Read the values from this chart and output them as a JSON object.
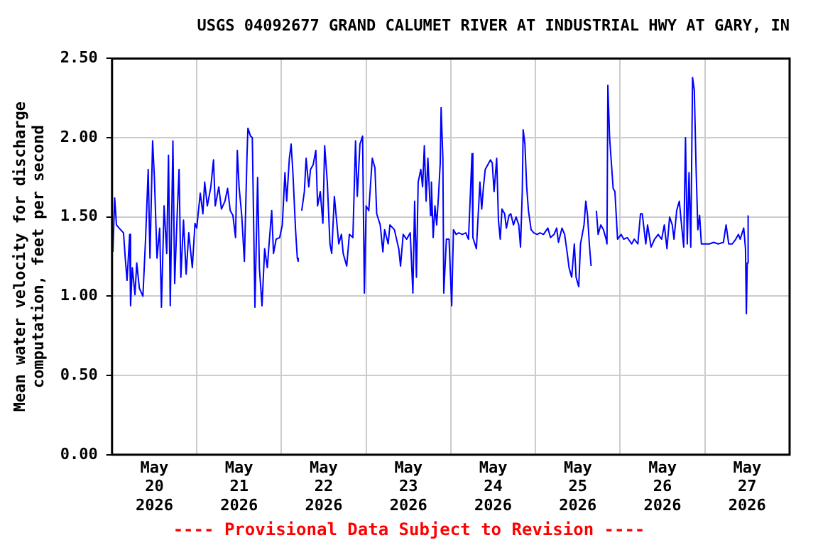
{
  "chart_data": {
    "type": "line",
    "title": "USGS 04092677 GRAND CALUMET RIVER AT INDUSTRIAL HWY AT GARY, IN",
    "ylabel": "Mean water velocity for discharge computation, feet per second",
    "annotations": [
      "---- Provisional Data Subject to Revision ----"
    ],
    "xlim": [
      "2026-05-20T00:00",
      "2026-05-28T00:00"
    ],
    "xticks": [
      {
        "value": "2026-05-20T00:00",
        "label": null
      },
      {
        "value": "2026-05-20T12:00",
        "label": "May 20 2026"
      },
      {
        "value": "2026-05-21T00:00",
        "label": null
      },
      {
        "value": "2026-05-21T12:00",
        "label": "May 21 2026"
      },
      {
        "value": "2026-05-22T00:00",
        "label": null
      },
      {
        "value": "2026-05-22T12:00",
        "label": "May 22 2026"
      },
      {
        "value": "2026-05-23T00:00",
        "label": null
      },
      {
        "value": "2026-05-23T12:00",
        "label": "May 23 2026"
      },
      {
        "value": "2026-05-24T00:00",
        "label": null
      },
      {
        "value": "2026-05-24T12:00",
        "label": "May 24 2026"
      },
      {
        "value": "2026-05-25T00:00",
        "label": null
      },
      {
        "value": "2026-05-25T12:00",
        "label": "May 25 2026"
      },
      {
        "value": "2026-05-26T00:00",
        "label": null
      },
      {
        "value": "2026-05-26T12:00",
        "label": "May 26 2026"
      },
      {
        "value": "2026-05-27T00:00",
        "label": null
      },
      {
        "value": "2026-05-27T12:00",
        "label": "May 27 2026"
      },
      {
        "value": "2026-05-28T00:00",
        "label": null
      }
    ],
    "ylim": [
      0,
      2.5
    ],
    "yticks": [
      {
        "value": 0,
        "label": "0.00"
      },
      {
        "value": 0.5,
        "label": "0.50"
      },
      {
        "value": 1,
        "label": "1.00"
      },
      {
        "value": 1.5,
        "label": "1.50"
      },
      {
        "value": 2,
        "label": "2.00"
      },
      {
        "value": 2.5,
        "label": "2.50"
      }
    ],
    "grid": true,
    "legend": false,
    "series": [
      {
        "color": "#0000ff",
        "x": [
          "2026-05-20T00:15",
          "2026-05-20T00:45",
          "2026-05-20T01:15",
          "2026-05-20T02:00",
          "2026-05-20T03:15",
          "2026-05-20T03:45",
          "2026-05-20T04:15",
          "2026-05-20T05:00",
          "2026-05-20T05:15",
          "2026-05-20T05:45",
          "2026-05-20T06:30",
          "2026-05-20T07:00",
          "2026-05-20T07:45",
          "2026-05-20T08:45",
          "2026-05-20T09:30",
          "2026-05-20T10:15",
          "2026-05-20T10:45",
          "2026-05-20T11:30",
          "2026-05-20T12:00",
          "2026-05-20T12:45",
          "2026-05-20T13:30",
          "2026-05-20T14:00",
          "2026-05-20T14:45",
          "2026-05-20T15:30",
          "2026-05-20T16:00",
          "2026-05-20T16:30",
          "2026-05-20T17:15",
          "2026-05-20T17:45",
          "2026-05-20T18:30",
          "2026-05-20T19:00",
          "2026-05-20T19:30",
          "2026-05-20T20:15",
          "2026-05-20T21:00",
          "2026-05-20T21:45",
          "2026-05-20T22:45",
          "2026-05-20T23:30",
          "2026-05-21T00:00",
          "2026-05-21T01:00",
          "2026-05-21T01:45",
          "2026-05-21T02:15",
          "2026-05-21T03:00",
          "2026-05-21T04:00",
          "2026-05-21T04:45",
          "2026-05-21T05:15",
          "2026-05-21T06:15",
          "2026-05-21T07:00",
          "2026-05-21T08:00",
          "2026-05-21T08:45",
          "2026-05-21T09:30",
          "2026-05-21T10:15",
          "2026-05-21T11:00",
          "2026-05-21T11:30",
          "2026-05-21T12:00",
          "2026-05-21T12:45",
          "2026-05-21T13:30",
          "2026-05-21T14:15",
          "2026-05-21T14:30",
          "2026-05-21T15:15",
          "2026-05-21T15:45",
          "2026-05-21T16:30",
          "2026-05-21T17:15",
          "2026-05-21T17:45",
          "2026-05-21T18:30",
          "2026-05-21T19:15",
          "2026-05-21T20:00",
          "2026-05-21T20:30",
          "2026-05-21T21:15",
          "2026-05-21T21:45",
          "2026-05-21T22:30",
          "2026-05-21T23:30",
          "2026-05-22T00:15",
          "2026-05-22T01:00",
          "2026-05-22T01:30",
          "2026-05-22T02:15",
          "2026-05-22T02:45",
          "2026-05-22T03:15",
          "2026-05-22T04:00",
          "2026-05-22T04:30",
          "2026-05-22T04:45",
          "2026-05-22T05:15",
          "2026-05-22T05:45",
          "2026-05-22T06:30",
          "2026-05-22T07:00",
          "2026-05-22T07:45",
          "2026-05-22T08:15",
          "2026-05-22T09:00",
          "2026-05-22T09:45",
          "2026-05-22T10:15",
          "2026-05-22T11:00",
          "2026-05-22T11:45",
          "2026-05-22T12:15",
          "2026-05-22T13:00",
          "2026-05-22T13:45",
          "2026-05-22T14:15",
          "2026-05-22T15:00",
          "2026-05-22T15:30",
          "2026-05-22T16:15",
          "2026-05-22T17:00",
          "2026-05-22T17:30",
          "2026-05-22T18:30",
          "2026-05-22T19:15",
          "2026-05-22T20:15",
          "2026-05-22T21:00",
          "2026-05-22T21:30",
          "2026-05-22T22:15",
          "2026-05-22T23:00",
          "2026-05-22T23:30",
          "2026-05-23T00:00",
          "2026-05-23T00:45",
          "2026-05-23T01:45",
          "2026-05-23T02:30",
          "2026-05-23T03:00",
          "2026-05-23T04:00",
          "2026-05-23T04:45",
          "2026-05-23T05:15",
          "2026-05-23T06:15",
          "2026-05-23T06:45",
          "2026-05-23T08:00",
          "2026-05-23T09:15",
          "2026-05-23T09:45",
          "2026-05-23T10:30",
          "2026-05-23T11:30",
          "2026-05-23T12:30",
          "2026-05-23T13:15",
          "2026-05-23T13:45",
          "2026-05-23T14:15",
          "2026-05-23T14:45",
          "2026-05-23T15:30",
          "2026-05-23T16:00",
          "2026-05-23T16:30",
          "2026-05-23T17:00",
          "2026-05-23T17:30",
          "2026-05-23T18:15",
          "2026-05-23T18:30",
          "2026-05-23T19:00",
          "2026-05-23T19:30",
          "2026-05-23T20:00",
          "2026-05-23T20:30",
          "2026-05-23T21:00",
          "2026-05-23T21:15",
          "2026-05-23T21:45",
          "2026-05-23T22:00",
          "2026-05-23T22:45",
          "2026-05-23T23:30",
          "2026-05-24T00:15",
          "2026-05-24T00:45",
          "2026-05-24T01:30",
          "2026-05-24T02:15",
          "2026-05-24T03:15",
          "2026-05-24T04:15",
          "2026-05-24T05:00",
          "2026-05-24T05:30",
          "2026-05-24T06:00",
          "2026-05-24T06:15",
          "2026-05-24T07:15",
          "2026-05-24T07:45",
          "2026-05-24T08:15",
          "2026-05-24T08:45",
          "2026-05-24T09:15",
          "2026-05-24T09:45",
          "2026-05-24T10:30",
          "2026-05-24T11:15",
          "2026-05-24T11:45",
          "2026-05-24T12:15",
          "2026-05-24T13:00",
          "2026-05-24T13:30",
          "2026-05-24T14:00",
          "2026-05-24T14:30",
          "2026-05-24T15:15",
          "2026-05-24T15:45",
          "2026-05-24T16:30",
          "2026-05-24T17:00",
          "2026-05-24T17:45",
          "2026-05-24T18:30",
          "2026-05-24T19:15",
          "2026-05-24T19:45",
          "2026-05-24T20:15",
          "2026-05-24T20:30",
          "2026-05-24T21:00",
          "2026-05-24T21:30",
          "2026-05-24T22:00",
          "2026-05-24T22:45",
          "2026-05-24T23:30",
          "2026-05-25T00:30",
          "2026-05-25T01:15",
          "2026-05-25T02:15",
          "2026-05-25T03:30",
          "2026-05-25T04:15",
          "2026-05-25T05:15",
          "2026-05-25T06:00",
          "2026-05-25T06:30",
          "2026-05-25T07:30",
          "2026-05-25T08:15",
          "2026-05-25T09:00",
          "2026-05-25T09:30",
          "2026-05-25T10:15",
          "2026-05-25T11:00",
          "2026-05-25T11:30",
          "2026-05-25T12:15",
          "2026-05-25T12:45",
          "2026-05-25T13:15",
          "2026-05-25T13:45",
          "2026-05-25T14:15",
          "2026-05-25T14:45",
          "2026-05-25T15:15",
          "2026-05-25T15:45",
          "2026-05-25T16:15",
          "2026-05-25T17:15",
          "2026-05-25T17:45",
          "2026-05-25T18:30",
          "2026-05-25T19:15",
          "2026-05-25T20:00",
          "2026-05-25T20:15",
          "2026-05-25T20:30",
          "2026-05-25T21:00",
          "2026-05-25T21:30",
          "2026-05-25T22:00",
          "2026-05-25T22:30",
          "2026-05-25T23:15",
          "2026-05-26T00:15",
          "2026-05-26T01:00",
          "2026-05-26T02:00",
          "2026-05-26T03:15",
          "2026-05-26T04:00",
          "2026-05-26T05:00",
          "2026-05-26T05:45",
          "2026-05-26T06:15",
          "2026-05-26T07:15",
          "2026-05-26T07:45",
          "2026-05-26T08:45",
          "2026-05-26T09:45",
          "2026-05-26T10:45",
          "2026-05-26T11:45",
          "2026-05-26T12:30",
          "2026-05-26T13:15",
          "2026-05-26T14:00",
          "2026-05-26T14:45",
          "2026-05-26T15:15",
          "2026-05-26T16:00",
          "2026-05-26T16:45",
          "2026-05-26T17:15",
          "2026-05-26T18:00",
          "2026-05-26T18:30",
          "2026-05-26T19:00",
          "2026-05-26T19:30",
          "2026-05-26T20:00",
          "2026-05-26T20:30",
          "2026-05-26T21:00",
          "2026-05-26T21:30",
          "2026-05-26T22:00",
          "2026-05-26T22:30",
          "2026-05-26T23:00",
          "2026-05-26T23:45",
          "2026-05-27T01:15",
          "2026-05-27T02:30",
          "2026-05-27T03:45",
          "2026-05-27T05:15",
          "2026-05-27T06:00",
          "2026-05-27T06:45",
          "2026-05-27T07:45",
          "2026-05-27T08:45",
          "2026-05-27T09:30",
          "2026-05-27T10:00",
          "2026-05-27T11:00",
          "2026-05-27T11:30",
          "2026-05-27T11:45",
          "2026-05-27T12:00",
          "2026-05-27T12:15"
        ],
        "values": [
          1.28,
          1.62,
          1.45,
          1.43,
          1.4,
          1.24,
          1.1,
          1.39,
          0.94,
          1.18,
          1.01,
          1.21,
          1.05,
          1.0,
          1.36,
          1.8,
          1.24,
          1.98,
          1.75,
          1.24,
          1.43,
          0.93,
          1.57,
          1.27,
          1.89,
          0.94,
          1.98,
          1.08,
          1.54,
          1.8,
          1.12,
          1.48,
          1.14,
          1.4,
          1.18,
          1.46,
          1.43,
          1.65,
          1.52,
          1.72,
          1.57,
          1.69,
          1.86,
          1.57,
          1.69,
          1.55,
          1.6,
          1.68,
          1.54,
          1.51,
          1.37,
          1.92,
          1.69,
          1.51,
          1.22,
          1.89,
          2.06,
          2.01,
          2.0,
          0.93,
          1.75,
          1.18,
          0.94,
          1.3,
          1.18,
          1.33,
          1.54,
          1.27,
          1.36,
          1.37,
          1.45,
          1.78,
          1.6,
          1.87,
          1.96,
          1.78,
          1.42,
          1.24,
          1.22,
          null,
          1.54,
          1.66,
          1.87,
          1.69,
          1.8,
          1.83,
          1.92,
          1.57,
          1.66,
          1.46,
          1.95,
          1.72,
          1.33,
          1.27,
          1.63,
          1.51,
          1.33,
          1.39,
          1.27,
          1.19,
          1.39,
          1.37,
          1.98,
          1.63,
          1.96,
          2.01,
          1.02,
          1.57,
          1.54,
          1.87,
          1.81,
          1.52,
          1.45,
          1.28,
          1.42,
          1.33,
          1.45,
          1.42,
          1.3,
          1.19,
          1.39,
          1.36,
          1.4,
          1.02,
          1.6,
          1.12,
          1.72,
          1.8,
          1.69,
          1.95,
          1.6,
          1.87,
          1.51,
          1.72,
          1.37,
          1.57,
          1.45,
          1.63,
          1.84,
          2.19,
          1.87,
          1.02,
          1.36,
          1.36,
          0.94,
          1.42,
          1.39,
          1.4,
          1.39,
          1.4,
          1.36,
          1.62,
          1.9,
          1.37,
          1.3,
          1.51,
          1.72,
          1.55,
          1.69,
          1.8,
          1.83,
          1.86,
          1.84,
          1.66,
          1.87,
          1.48,
          1.36,
          1.55,
          1.52,
          1.43,
          1.51,
          1.52,
          1.45,
          1.5,
          1.45,
          1.31,
          1.66,
          2.05,
          1.96,
          1.69,
          1.54,
          1.42,
          1.4,
          1.39,
          1.4,
          1.39,
          1.43,
          1.37,
          1.39,
          1.43,
          1.34,
          1.43,
          1.39,
          1.27,
          1.18,
          1.12,
          1.33,
          1.12,
          1.06,
          1.33,
          1.39,
          1.45,
          1.6,
          1.51,
          1.33,
          1.19,
          null,
          1.54,
          1.39,
          1.45,
          1.42,
          1.36,
          1.33,
          2.33,
          2.0,
          1.84,
          1.68,
          1.66,
          1.36,
          1.39,
          1.36,
          1.37,
          1.33,
          1.36,
          1.33,
          1.52,
          1.52,
          1.33,
          1.45,
          1.31,
          1.36,
          1.39,
          1.36,
          1.45,
          1.3,
          1.5,
          1.45,
          1.36,
          1.54,
          1.6,
          1.48,
          1.31,
          2.0,
          1.33,
          1.78,
          1.31,
          2.38,
          2.3,
          1.81,
          1.42,
          1.51,
          1.33,
          1.33,
          1.33,
          1.34,
          1.33,
          1.34,
          1.45,
          1.33,
          1.33,
          1.36,
          1.39,
          1.36,
          1.43,
          1.3,
          0.89,
          1.21,
          1.51
        ]
      }
    ]
  }
}
